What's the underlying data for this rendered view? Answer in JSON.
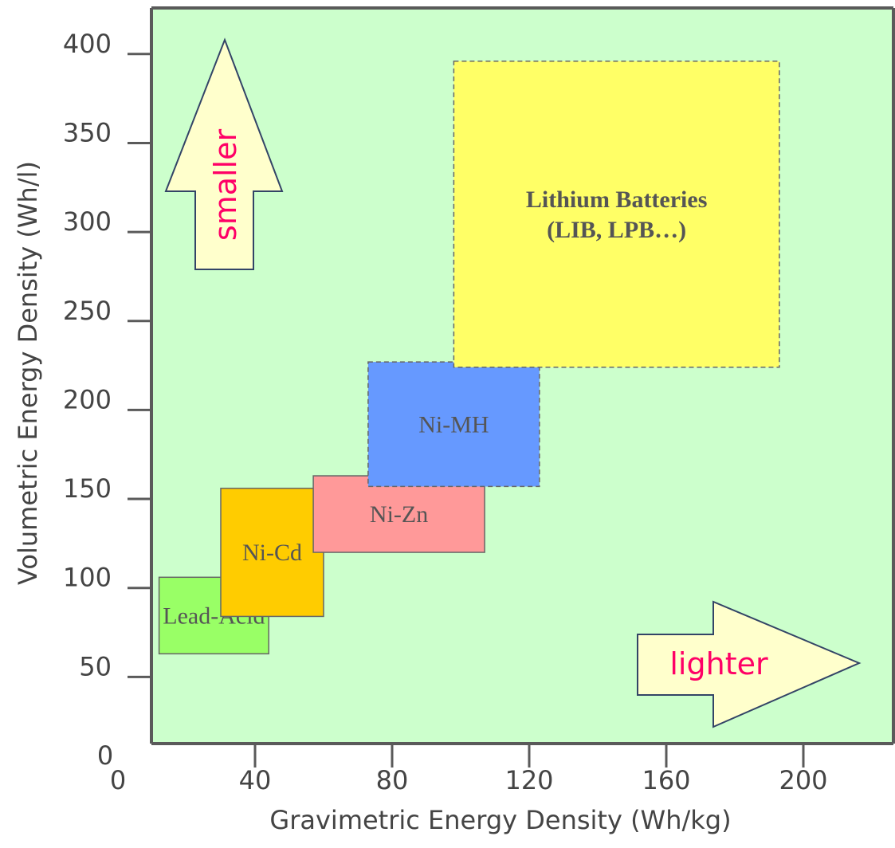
{
  "chart_data": {
    "type": "area",
    "xlabel": "Gravimetric Energy Density (Wh/kg)",
    "ylabel": "Volumetric Energy Density (Wh/l)",
    "xlim": [
      0,
      200
    ],
    "ylim": [
      0,
      400
    ],
    "x_ticks": [
      0,
      40,
      80,
      120,
      160,
      200
    ],
    "y_ticks": [
      0,
      50,
      100,
      150,
      200,
      250,
      300,
      350,
      400
    ],
    "grid": false,
    "background_color": "#ccffcc",
    "regions": [
      {
        "name": "Lead-Acid",
        "label_lines": [
          "Lead-Acid"
        ],
        "x": [
          12,
          44
        ],
        "y": [
          63,
          106
        ],
        "color": "#99ff66",
        "border": "solid",
        "bold": false
      },
      {
        "name": "Ni-Cd",
        "label_lines": [
          "Ni-Cd"
        ],
        "x": [
          30,
          60
        ],
        "y": [
          84,
          156
        ],
        "color": "#ffcc00",
        "border": "solid",
        "bold": false
      },
      {
        "name": "Ni-Zn",
        "label_lines": [
          "Ni-Zn"
        ],
        "x": [
          57,
          107
        ],
        "y": [
          120,
          163
        ],
        "color": "#ff9999",
        "border": "solid",
        "bold": false
      },
      {
        "name": "Ni-MH",
        "label_lines": [
          "Ni-MH"
        ],
        "x": [
          73,
          123
        ],
        "y": [
          157,
          227
        ],
        "color": "#6699ff",
        "border": "dashed",
        "bold": false
      },
      {
        "name": "Lithium Batteries",
        "label_lines": [
          "Lithium Batteries",
          "(LIB, LPB…)"
        ],
        "x": [
          98,
          193
        ],
        "y": [
          224,
          396
        ],
        "color": "#ffff66",
        "border": "dashed",
        "bold": true
      }
    ],
    "annotations": [
      {
        "text": "smaller",
        "direction": "up",
        "color": "#ff0066",
        "fill": "#ffffcc"
      },
      {
        "text": "lighter",
        "direction": "right",
        "color": "#ff0066",
        "fill": "#ffffcc"
      }
    ]
  }
}
